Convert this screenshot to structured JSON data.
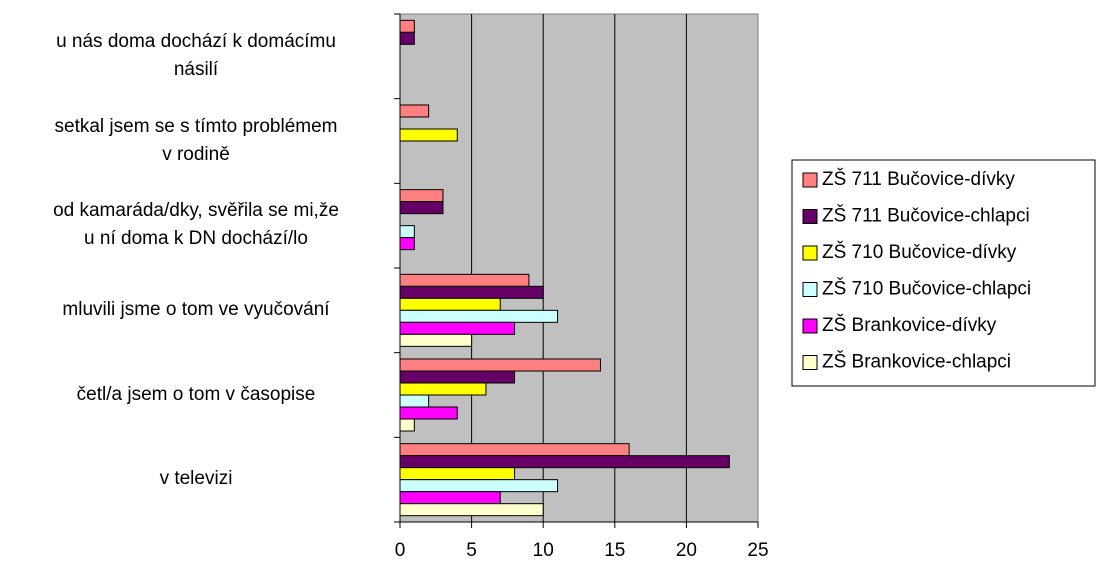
{
  "chart_data": {
    "type": "hbar",
    "categories": [
      "v televizi",
      "četl/a jsem o tom v časopise",
      "mluvili jsme o tom ve vyučování",
      "od kamaráda/dky, svěřila se mi,že\nu ní doma k DN dochází/lo",
      "setkal jsem se s tímto problémem\nv rodině",
      "u nás doma dochází k domácímu\nnásilí"
    ],
    "series": [
      {
        "name": "ZŠ 711 Bučovice-dívky",
        "color": "#FF8080",
        "values": [
          16,
          14,
          9,
          3,
          2,
          1
        ]
      },
      {
        "name": "ZŠ 711 Bučovice-chlapci",
        "color": "#660066",
        "values": [
          23,
          8,
          10,
          3,
          0,
          1
        ]
      },
      {
        "name": "ZŠ 710 Bučovice-dívky",
        "color": "#FFFF00",
        "values": [
          8,
          6,
          7,
          0,
          4,
          0
        ]
      },
      {
        "name": "ZŠ 710 Bučovice-chlapci",
        "color": "#CCFFFF",
        "values": [
          11,
          2,
          11,
          1,
          0,
          0
        ]
      },
      {
        "name": "ZŠ Brankovice-dívky",
        "color": "#FF00FF",
        "values": [
          7,
          4,
          8,
          1,
          0,
          0
        ]
      },
      {
        "name": "ZŠ Brankovice-chlapci",
        "color": "#FFFFCC",
        "values": [
          10,
          1,
          5,
          0,
          0,
          0
        ]
      }
    ],
    "xlim": [
      0,
      25
    ],
    "xticks": [
      0,
      5,
      10,
      15,
      20,
      25
    ],
    "grid": true,
    "legend": "right"
  }
}
